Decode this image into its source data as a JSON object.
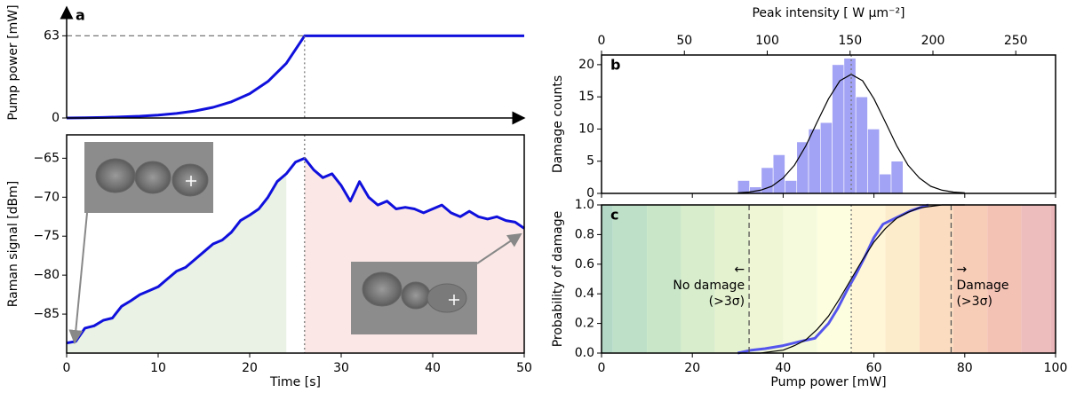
{
  "chart_data": [
    {
      "type": "line",
      "panel_label": "a",
      "ylabel": "Pump power [mW]",
      "x": [
        0,
        2,
        4,
        6,
        8,
        10,
        12,
        14,
        16,
        18,
        20,
        22,
        24,
        26,
        50
      ],
      "series": [
        {
          "color": "#1010dd",
          "values": [
            0,
            0.17,
            0.43,
            0.81,
            1.38,
            2.22,
            3.48,
            5.37,
            8.18,
            12.4,
            18.6,
            28.0,
            41.9,
            63,
            63
          ]
        }
      ],
      "ylim": [
        0,
        85
      ],
      "yticks": [
        0,
        63
      ],
      "hlines": [
        {
          "y": 63,
          "x_end": 26
        }
      ],
      "vlines": [
        {
          "x": 26,
          "style": "dotted"
        }
      ]
    },
    {
      "type": "line",
      "xlabel": "Time [s]",
      "ylabel": "Raman signal [dBm]",
      "x": [
        0,
        1,
        2,
        3,
        4,
        5,
        6,
        7,
        8,
        9,
        10,
        11,
        12,
        13,
        14,
        15,
        16,
        17,
        18,
        19,
        20,
        21,
        22,
        23,
        24,
        25,
        26,
        27,
        28,
        29,
        30,
        31,
        32,
        33,
        34,
        35,
        36,
        37,
        38,
        39,
        40,
        41,
        42,
        43,
        44,
        45,
        46,
        47,
        48,
        49,
        50
      ],
      "series": [
        {
          "color": "#1010dd",
          "values": [
            -88.7,
            -88.5,
            -86.8,
            -86.5,
            -85.8,
            -85.5,
            -84,
            -83.3,
            -82.5,
            -82,
            -81.5,
            -80.5,
            -79.5,
            -79,
            -78,
            -77,
            -76,
            -75.5,
            -74.5,
            -73,
            -72.3,
            -71.5,
            -70,
            -68,
            -67,
            -65.5,
            -65,
            -66.5,
            -67.5,
            -67,
            -68.5,
            -70.5,
            -68,
            -70,
            -71,
            -70.5,
            -71.5,
            -71.3,
            -71.5,
            -72,
            -71.5,
            -71,
            -72,
            -72.5,
            -71.8,
            -72.5,
            -72.8,
            -72.5,
            -73,
            -73.2,
            -74
          ]
        }
      ],
      "xlim": [
        0,
        50
      ],
      "xticks": [
        0,
        10,
        20,
        30,
        40,
        50
      ],
      "ylim": [
        -90,
        -62
      ],
      "yticks": [
        {
          "value": -85,
          "label": "−85"
        },
        {
          "value": -80,
          "label": "−80"
        },
        {
          "value": -75,
          "label": "−75"
        },
        {
          "value": -70,
          "label": "−70"
        },
        {
          "value": -65,
          "label": "−65"
        }
      ],
      "shaded": [
        {
          "xlim": [
            0,
            24
          ],
          "color": "#e9f2e4"
        },
        {
          "xlim": [
            26,
            50
          ],
          "color": "#fbe8e6"
        }
      ],
      "vlines": [
        {
          "x": 26,
          "style": "dotted"
        }
      ]
    },
    {
      "type": "histogram",
      "panel_label": "b",
      "ylabel": "Damage counts",
      "bins": [
        30,
        32.6,
        35.2,
        37.8,
        40.4,
        43,
        45.6,
        48.2,
        50.8,
        53.4,
        56,
        58.6,
        61.2,
        63.8,
        66.4
      ],
      "counts": [
        2,
        1,
        4,
        6,
        2,
        8,
        10,
        11,
        20,
        21,
        15,
        10,
        3,
        5
      ],
      "color": "#a3a3f5",
      "ylim": [
        0,
        21.5
      ],
      "yticks": [
        0,
        5,
        10,
        15,
        20
      ],
      "x2label": "Peak intensity [ W μm⁻²]",
      "x2lim": [
        0,
        274
      ],
      "x2ticks": [
        0,
        50,
        100,
        150,
        200,
        250
      ],
      "fit": {
        "color": "#000000",
        "x": [
          30,
          32.5,
          35,
          37.5,
          40,
          42.5,
          45,
          47.5,
          50,
          52.5,
          55,
          57.5,
          60,
          62.5,
          65,
          67.5,
          70,
          72.5,
          75,
          77.5,
          80
        ],
        "values": [
          0.1,
          0.2,
          0.5,
          1.1,
          2.4,
          4.4,
          7.4,
          11.1,
          14.7,
          17.5,
          18.5,
          17.5,
          14.7,
          11.1,
          7.4,
          4.4,
          2.4,
          1.1,
          0.5,
          0.2,
          0.1
        ]
      },
      "vlines": [
        {
          "x": 55,
          "style": "dotted"
        }
      ]
    },
    {
      "type": "line",
      "panel_label": "c",
      "xlabel": "Pump power [mW]",
      "ylabel": "Probability of damage",
      "xlim": [
        0,
        100
      ],
      "xticks": [
        0,
        20,
        40,
        60,
        80,
        100
      ],
      "ylim": [
        0,
        1
      ],
      "yticks": [
        {
          "value": 0,
          "label": "0.0"
        },
        0.2,
        0.4,
        0.6,
        0.8,
        {
          "value": 1,
          "label": "1.0"
        }
      ],
      "series": [
        {
          "color": "#5555ee",
          "x": [
            30,
            33,
            36,
            40,
            44,
            47,
            50,
            52,
            54,
            56,
            58,
            60,
            62,
            64,
            66,
            68,
            70,
            72
          ],
          "values": [
            0,
            0.02,
            0.03,
            0.05,
            0.08,
            0.1,
            0.2,
            0.3,
            0.42,
            0.53,
            0.65,
            0.78,
            0.87,
            0.9,
            0.93,
            0.96,
            0.98,
            1.0
          ]
        },
        {
          "color": "#000000",
          "x": [
            30,
            32.5,
            35,
            37.5,
            40,
            42.5,
            45,
            47.5,
            50,
            52.5,
            55,
            57.5,
            60,
            62.5,
            65,
            67.5,
            70,
            72.5,
            75,
            77.5,
            80
          ],
          "values": [
            0,
            0,
            0,
            0.01,
            0.02,
            0.05,
            0.09,
            0.16,
            0.25,
            0.37,
            0.5,
            0.63,
            0.75,
            0.84,
            0.91,
            0.95,
            0.98,
            0.99,
            1.0,
            1.0,
            1.0
          ]
        }
      ],
      "bands": {
        "edges": [
          0,
          2.5,
          10,
          17.5,
          25,
          32.5,
          40,
          47.5,
          55,
          62.5,
          70,
          77.5,
          85,
          92.5,
          99,
          100
        ],
        "colors": [
          "#b3d9c6",
          "#bee0c9",
          "#c9e6c8",
          "#d8edcb",
          "#e5f2cf",
          "#eef6d6",
          "#f6fadc",
          "#fdfde0",
          "#fef6d6",
          "#fdeccc",
          "#fbdcc0",
          "#f8cdb8",
          "#f4c2b5",
          "#edbcbc",
          "#e9b5b8"
        ]
      },
      "vlines": [
        {
          "x": 32.5,
          "style": "dashed"
        },
        {
          "x": 55,
          "style": "dotted"
        },
        {
          "x": 77,
          "style": "dashed"
        }
      ],
      "annotations": [
        [
          "←",
          "No damage",
          "(>3σ)"
        ],
        [
          "→",
          "Damage",
          "(>3σ)"
        ]
      ]
    }
  ]
}
